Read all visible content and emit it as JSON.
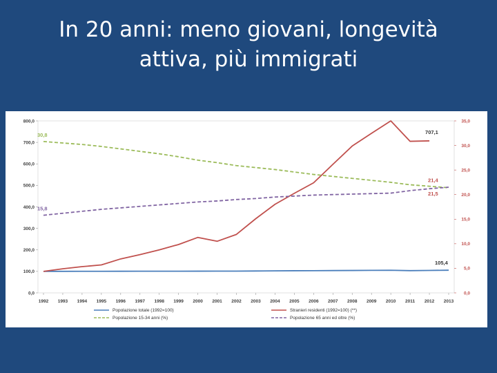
{
  "slide": {
    "title_line1": "In 20 anni: meno giovani, longevità",
    "title_line2": "attiva, più immigrati"
  },
  "colors": {
    "background": "#1f497d",
    "blue": "#4a7ebb",
    "red": "#c0504d",
    "green": "#9bbb59",
    "purple": "#8064a2"
  },
  "chart_data": {
    "type": "line",
    "categories": [
      "1992",
      "1993",
      "1994",
      "1995",
      "1996",
      "1997",
      "1998",
      "1999",
      "2000",
      "2001",
      "2002",
      "2003",
      "2004",
      "2005",
      "2006",
      "2007",
      "2008",
      "2009",
      "2010",
      "2011",
      "2012",
      "2013"
    ],
    "left_axis": {
      "min": 0,
      "max": 800,
      "ticks": [
        "0,0",
        "100,0",
        "200,0",
        "300,0",
        "400,0",
        "500,0",
        "600,0",
        "700,0",
        "800,0"
      ]
    },
    "right_axis": {
      "min": 0,
      "max": 35,
      "ticks": [
        "0,0",
        "5,0",
        "10,0",
        "15,0",
        "20,0",
        "25,0",
        "30,0",
        "35,0"
      ]
    },
    "series": [
      {
        "name": "Popolazione totale (1992=100)",
        "axis": "left",
        "style": "solid",
        "color": "#4a7ebb",
        "values": [
          100,
          100.2,
          100.4,
          100.5,
          100.6,
          100.7,
          100.8,
          100.9,
          101,
          101.1,
          101.3,
          101.8,
          102.5,
          103,
          103.3,
          103.8,
          104.3,
          104.8,
          105.2,
          103.5,
          104.5,
          105.4
        ]
      },
      {
        "name": "Stranieri residenti (1992=100) (**)",
        "axis": "left",
        "style": "solid",
        "color": "#c0504d",
        "values": [
          100,
          112,
          122,
          130,
          158,
          178,
          200,
          225,
          258,
          240,
          272,
          345,
          412,
          463,
          512,
          598,
          683,
          742,
          800,
          705,
          707.1,
          null
        ]
      },
      {
        "name": "Popolazione 15-34 anni  (%)",
        "axis": "right",
        "style": "dashed",
        "color": "#9bbb59",
        "values": [
          30.8,
          30.5,
          30.2,
          29.8,
          29.3,
          28.8,
          28.3,
          27.7,
          27.0,
          26.5,
          25.9,
          25.5,
          25.1,
          24.6,
          24.1,
          23.7,
          23.3,
          22.9,
          22.5,
          22.0,
          21.7,
          21.4
        ]
      },
      {
        "name": "Popolazione 65 anni ed oltre (%)",
        "axis": "right",
        "style": "dashed",
        "color": "#8064a2",
        "values": [
          15.8,
          16.2,
          16.6,
          17.0,
          17.3,
          17.6,
          17.9,
          18.2,
          18.5,
          18.7,
          19.0,
          19.2,
          19.5,
          19.7,
          19.9,
          20.0,
          20.1,
          20.2,
          20.3,
          20.8,
          21.2,
          21.5
        ]
      }
    ],
    "annotations": {
      "green_start": "30,8",
      "purple_start": "15,8",
      "red_end": "707,1",
      "blue_end": "105,4",
      "green_end": "21,4",
      "purple_end": "21,5"
    }
  }
}
